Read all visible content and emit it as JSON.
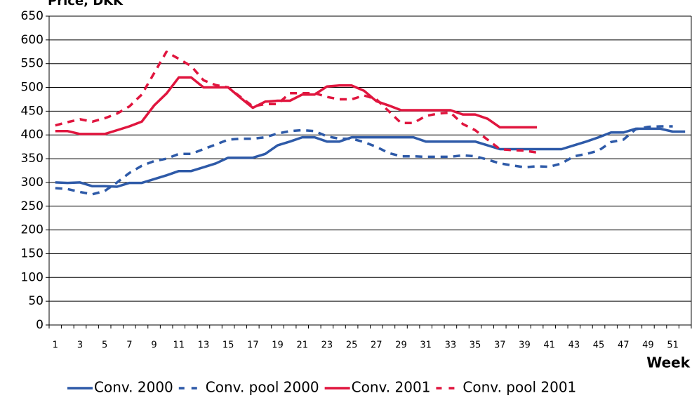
{
  "chart_data": {
    "type": "line",
    "y_label": "Price, DKK",
    "x_label": "Week",
    "categories": [
      1,
      null,
      3,
      null,
      5,
      null,
      7,
      null,
      9,
      null,
      11,
      null,
      13,
      null,
      15,
      null,
      17,
      null,
      19,
      null,
      21,
      null,
      23,
      null,
      25,
      null,
      27,
      null,
      29,
      null,
      31,
      null,
      33,
      null,
      35,
      null,
      37,
      null,
      39,
      null,
      41,
      null,
      43,
      null,
      45,
      null,
      47,
      null,
      49,
      null,
      51,
      null
    ],
    "ylim": [
      0,
      650
    ],
    "yticks": [
      0,
      50,
      100,
      150,
      200,
      250,
      300,
      350,
      400,
      450,
      500,
      550,
      600,
      650
    ],
    "grid": true,
    "legend": "bottom",
    "series": [
      {
        "name": "Conv. 2000",
        "color": "#2e5aa8",
        "style": "solid",
        "values": [
          300,
          299,
          300,
          292,
          292,
          291,
          299,
          299,
          307,
          315,
          324,
          324,
          332,
          340,
          352,
          352,
          352,
          360,
          378,
          386,
          395,
          395,
          386,
          386,
          395,
          395,
          395,
          395,
          395,
          395,
          386,
          386,
          386,
          386,
          386,
          378,
          370,
          370,
          370,
          370,
          370,
          370,
          378,
          386,
          395,
          405,
          405,
          413,
          413,
          413,
          407,
          407
        ]
      },
      {
        "name": "Conv. pool 2000",
        "color": "#2e5aa8",
        "style": "dashed",
        "values": [
          288,
          286,
          280,
          275,
          282,
          300,
          320,
          335,
          345,
          350,
          360,
          360,
          370,
          380,
          390,
          392,
          392,
          395,
          403,
          408,
          410,
          408,
          397,
          392,
          392,
          385,
          375,
          362,
          355,
          355,
          354,
          354,
          354,
          357,
          355,
          348,
          340,
          336,
          332,
          334,
          333,
          340,
          355,
          360,
          367,
          385,
          390,
          412,
          417,
          418,
          418,
          null
        ]
      },
      {
        "name": "Conv. 2001",
        "color": "#e0153e",
        "style": "solid",
        "values": [
          408,
          408,
          402,
          402,
          402,
          410,
          418,
          428,
          462,
          487,
          521,
          521,
          500,
          500,
          500,
          478,
          457,
          470,
          472,
          472,
          485,
          485,
          502,
          504,
          504,
          493,
          471,
          462,
          452,
          452,
          452,
          452,
          452,
          443,
          443,
          434,
          416,
          416,
          416,
          416,
          null,
          null,
          null,
          null,
          null,
          null,
          null,
          null,
          null,
          null,
          null,
          null
        ]
      },
      {
        "name": "Conv. pool 2001",
        "color": "#e0153e",
        "style": "dashed",
        "values": [
          420,
          427,
          433,
          428,
          435,
          445,
          460,
          485,
          530,
          575,
          560,
          545,
          515,
          505,
          500,
          480,
          460,
          465,
          465,
          488,
          488,
          488,
          480,
          475,
          475,
          483,
          475,
          450,
          425,
          425,
          440,
          445,
          447,
          423,
          410,
          390,
          370,
          368,
          367,
          363,
          null,
          null,
          null,
          null,
          null,
          null,
          null,
          null,
          null,
          null,
          null,
          null
        ]
      }
    ]
  }
}
